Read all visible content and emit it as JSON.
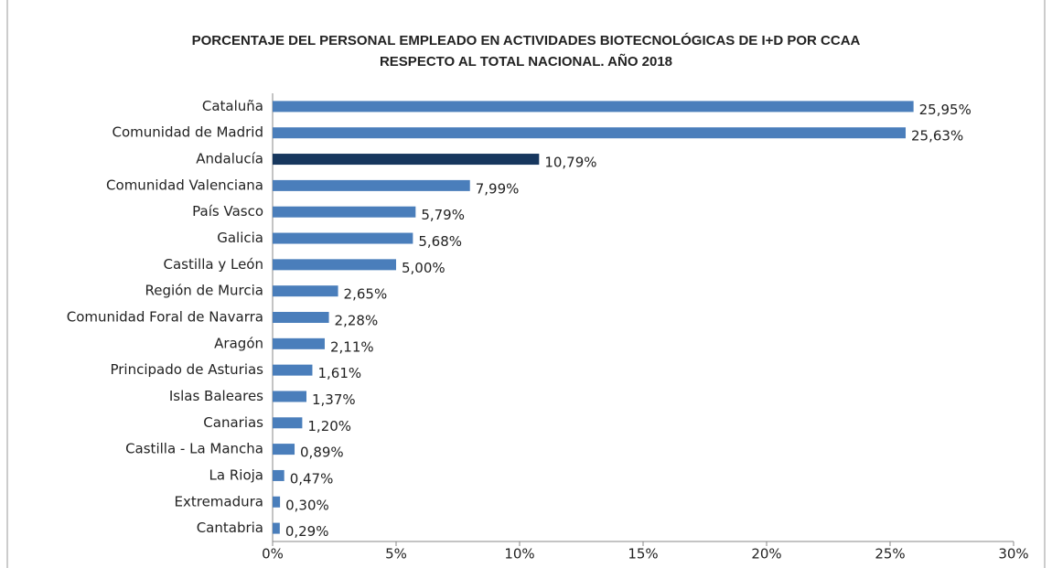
{
  "chart_data": {
    "type": "bar",
    "orientation": "horizontal",
    "title": [
      "PORCENTAJE DEL PERSONAL EMPLEADO EN ACTIVIDADES BIOTECNOLÓGICAS DE I+D POR CCAA",
      "RESPECTO AL TOTAL NACIONAL. AÑO 2018"
    ],
    "categories": [
      "Cataluña",
      "Comunidad de Madrid",
      "Andalucía",
      "Comunidad Valenciana",
      "País Vasco",
      "Galicia",
      "Castilla y León",
      "Región de Murcia",
      "Comunidad Foral de Navarra",
      "Aragón",
      "Principado de Asturias",
      "Islas Baleares",
      "Canarias",
      "Castilla - La Mancha",
      "La Rioja",
      "Extremadura",
      "Cantabria"
    ],
    "values": [
      25.95,
      25.63,
      10.79,
      7.99,
      5.79,
      5.68,
      5.0,
      2.65,
      2.28,
      2.11,
      1.61,
      1.37,
      1.2,
      0.89,
      0.47,
      0.3,
      0.29
    ],
    "value_labels": [
      "25,95%",
      "25,63%",
      "10,79%",
      "7,99%",
      "5,79%",
      "5,68%",
      "5,00%",
      "2,65%",
      "2,28%",
      "2,11%",
      "1,61%",
      "1,37%",
      "1,20%",
      "0,89%",
      "0,47%",
      "0,30%",
      "0,29%"
    ],
    "colors": [
      "#4a7ebb",
      "#4a7ebb",
      "#17375e",
      "#4a7ebb",
      "#4a7ebb",
      "#4a7ebb",
      "#4a7ebb",
      "#4a7ebb",
      "#4a7ebb",
      "#4a7ebb",
      "#4a7ebb",
      "#4a7ebb",
      "#4a7ebb",
      "#4a7ebb",
      "#4a7ebb",
      "#4a7ebb",
      "#4a7ebb"
    ],
    "xlim": [
      0,
      30
    ],
    "xticks": [
      {
        "value": 0,
        "label": "0%"
      },
      {
        "value": 5,
        "label": "5%"
      },
      {
        "value": 10,
        "label": "10%"
      },
      {
        "value": 15,
        "label": "15%"
      },
      {
        "value": 20,
        "label": "20%"
      },
      {
        "value": 25,
        "label": "25%"
      },
      {
        "value": 30,
        "label": "30%"
      }
    ],
    "grid": false
  }
}
